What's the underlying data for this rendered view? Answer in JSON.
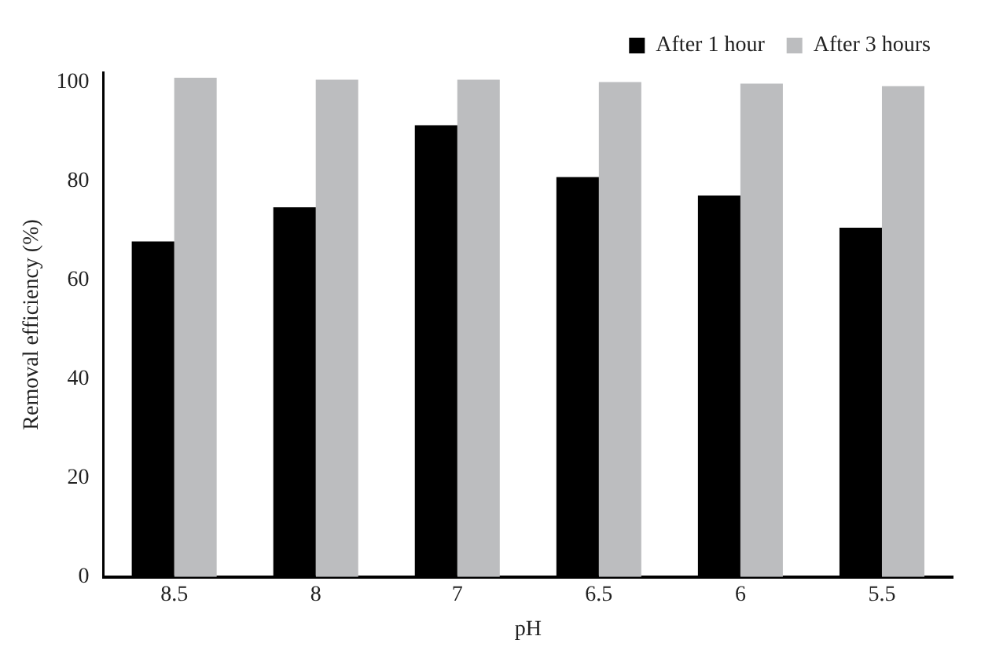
{
  "chart_data": {
    "type": "bar",
    "xlabel": "pH",
    "ylabel": "Removal efficiency (%)",
    "categories": [
      "8.5",
      "8",
      "7",
      "6.5",
      "6",
      "5.5"
    ],
    "series": [
      {
        "name": "After 1 hour",
        "color": "#000000",
        "values": [
          67.8,
          74.7,
          91.3,
          80.8,
          77.1,
          70.6
        ]
      },
      {
        "name": "After 3 hours",
        "color": "#bcbdbf",
        "values": [
          100.9,
          100.5,
          100.5,
          100.0,
          99.7,
          99.2
        ]
      }
    ],
    "ylim": [
      0,
      102
    ],
    "yticks": [
      0,
      20,
      40,
      60,
      80,
      100
    ],
    "grid": false,
    "legend": "top right"
  }
}
